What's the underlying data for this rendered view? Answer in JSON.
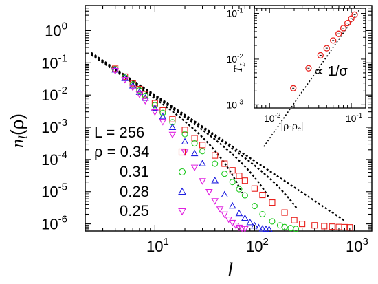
{
  "chart_data": [
    {
      "type": "scatter",
      "ylabel": "n_l(ρ)",
      "xlabel": "l",
      "xscale": "log",
      "yscale": "log",
      "xlim": [
        2,
        1500
      ],
      "ylim": [
        6e-07,
        6
      ],
      "x_ticks": [
        10,
        100,
        1000
      ],
      "y_ticks": [
        1.0,
        0.1,
        0.01,
        0.001,
        0.0001,
        1e-05,
        1e-06
      ],
      "x_tick_labels": [
        {
          "base": "10",
          "exp": "1"
        },
        {
          "base": "10",
          "exp": "2"
        },
        {
          "base": "10",
          "exp": "3"
        }
      ],
      "y_tick_labels": [
        {
          "base": "10",
          "exp": "0"
        },
        {
          "base": "10",
          "exp": "-1"
        },
        {
          "base": "10",
          "exp": "-2"
        },
        {
          "base": "10",
          "exp": "-3"
        },
        {
          "base": "10",
          "exp": "-4"
        },
        {
          "base": "10",
          "exp": "-5"
        },
        {
          "base": "10",
          "exp": "-6"
        }
      ],
      "legend_title": "L = 256",
      "legend_position": "bottom-left",
      "series": [
        {
          "name": "ρ = 0.34",
          "marker": "square",
          "color": "#e8201c",
          "l": [
            4,
            5,
            6,
            7,
            8,
            10,
            12,
            15,
            20,
            25,
            30,
            40,
            50,
            60,
            70,
            80,
            100,
            120,
            150,
            200,
            250,
            300,
            400,
            500,
            600,
            700,
            800,
            900
          ],
          "n": [
            0.0656,
            0.0373,
            0.0231,
            0.0153,
            0.0106,
            0.00559,
            0.00335,
            0.00178,
            0.00083,
            0.000457,
            0.000281,
            0.000133,
            7.4e-05,
            4.6e-05,
            3.1e-05,
            2.2e-05,
            1.25e-05,
            7.9e-06,
            4.6e-06,
            2.25e-06,
            1.3e-06,
            1e-06,
            9e-07,
            8.5e-07,
            8.2e-07,
            8e-07,
            7.9e-07,
            7.8e-07
          ]
        },
        {
          "name": "0.31",
          "marker": "circle",
          "color": "#1ec81e",
          "l": [
            4,
            5,
            6,
            7,
            8,
            10,
            12,
            15,
            20,
            25,
            30,
            40,
            50,
            60,
            70,
            80,
            100,
            120,
            150,
            180,
            200,
            230,
            260
          ],
          "n": [
            0.0633,
            0.0353,
            0.0213,
            0.0139,
            0.0094,
            0.00484,
            0.00279,
            0.00143,
            0.00061,
            0.000314,
            0.000181,
            7.4e-05,
            3.6e-05,
            2e-05,
            1.2e-05,
            7.7e-06,
            3.6e-06,
            2e-06,
            1.2e-06,
            9e-07,
            8e-07,
            7.4e-07,
            7e-07
          ]
        },
        {
          "name": "0.28",
          "marker": "triangle-up",
          "color": "#1f1fe0",
          "l": [
            4,
            5,
            6,
            7,
            8,
            10,
            12,
            15,
            20,
            25,
            30,
            40,
            50,
            60,
            70,
            80,
            90,
            100,
            110,
            120,
            130,
            140
          ],
          "n": [
            0.0603,
            0.0328,
            0.0193,
            0.0122,
            0.008,
            0.00389,
            0.00212,
            0.00099,
            0.000352,
            0.000152,
            7.4e-05,
            2.2e-05,
            8e-06,
            3.6e-06,
            2.1e-06,
            1.5e-06,
            1.1e-06,
            8.7e-07,
            7.6e-07,
            7e-07,
            6.8e-07,
            6.7e-07
          ]
        },
        {
          "name": "0.25",
          "marker": "triangle-down",
          "color": "#e020e0",
          "l": [
            4,
            5,
            6,
            7,
            8,
            10,
            12,
            15,
            20,
            25,
            30,
            35,
            40,
            45,
            50,
            55,
            60,
            65,
            70,
            75,
            80
          ],
          "n": [
            0.057,
            0.0302,
            0.0173,
            0.0106,
            0.0067,
            0.00299,
            0.00149,
            0.000597,
            0.000171,
            5.7e-05,
            2.17e-05,
            1e-05,
            5.2e-06,
            2.9e-06,
            2e-06,
            1.4e-06,
            1.1e-06,
            9e-07,
            7.8e-07,
            7.3e-07,
            7.1e-07
          ]
        }
      ]
    },
    {
      "type": "scatter",
      "ylabel": "T_L",
      "xlabel": "|ρ-ρ_c|",
      "xscale": "log",
      "yscale": "log",
      "xlim": [
        0.0065,
        0.15
      ],
      "ylim": [
        0.00085,
        0.13
      ],
      "x_ticks": [
        0.01,
        0.1
      ],
      "y_ticks": [
        0.001,
        0.01,
        0.1
      ],
      "x_tick_labels": [
        {
          "base": "10",
          "exp": "-2"
        },
        {
          "base": "10",
          "exp": "-1"
        }
      ],
      "y_tick_labels": [
        {
          "base": "10",
          "exp": "-3"
        },
        {
          "base": "10",
          "exp": "-2"
        },
        {
          "base": "10",
          "exp": "-1"
        }
      ],
      "annotation": "∝ 1/σ",
      "series": [
        {
          "name": "",
          "marker": "circle",
          "color": "#e8201c",
          "x": [
            0.0195,
            0.03,
            0.042,
            0.05,
            0.06,
            0.07,
            0.08,
            0.09,
            0.1,
            0.11
          ],
          "y": [
            0.0023,
            0.0063,
            0.0121,
            0.0173,
            0.0256,
            0.0358,
            0.0477,
            0.0614,
            0.0768,
            0.0941
          ]
        }
      ]
    }
  ]
}
